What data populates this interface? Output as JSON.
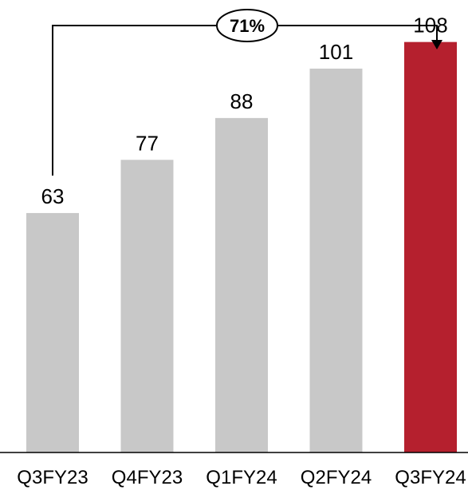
{
  "chart_data": {
    "type": "bar",
    "categories": [
      "Q3FY23",
      "Q4FY23",
      "Q1FY24",
      "Q2FY24",
      "Q3FY24"
    ],
    "values": [
      63,
      77,
      88,
      101,
      108
    ],
    "value_labels": [
      "63",
      "77",
      "88",
      "101",
      "108"
    ],
    "colors": [
      "#c8c8c8",
      "#c8c8c8",
      "#c8c8c8",
      "#c8c8c8",
      "#b5202e"
    ],
    "highlight_index": 4,
    "growth_annotation": {
      "label": "71%",
      "from_index": 0,
      "to_index": 4
    },
    "ylim": [
      0,
      118
    ],
    "grid": false,
    "y_axis_visible": false,
    "legend": "none"
  }
}
